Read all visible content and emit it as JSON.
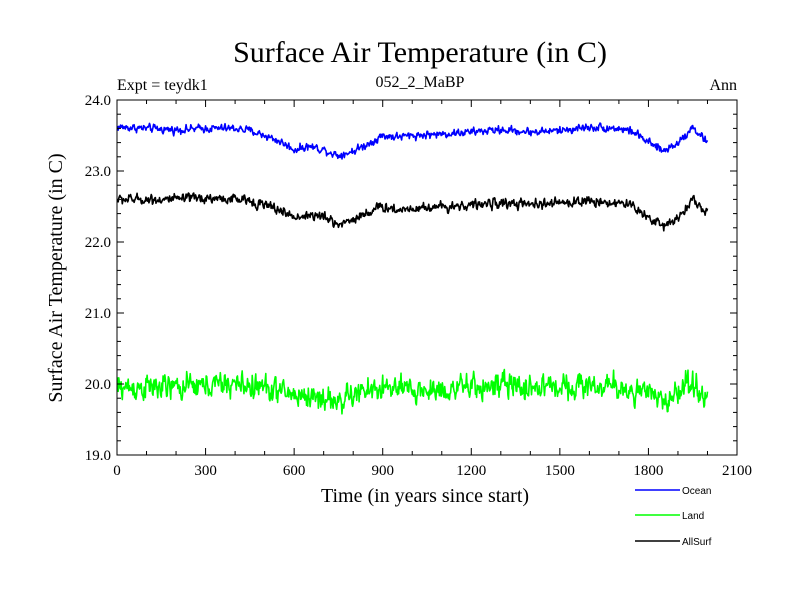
{
  "chart_data": {
    "type": "line",
    "title": "Surface Air Temperature (in C)",
    "subtitle_left": "Expt = teydk1",
    "subtitle_center": "052_2_MaBP",
    "subtitle_right": "Ann",
    "xlabel": "Time (in years since start)",
    "ylabel": "Surface Air Temperature (in C)",
    "xlim": [
      0,
      2100
    ],
    "ylim": [
      19.0,
      24.0
    ],
    "xticks": [
      0,
      300,
      600,
      900,
      1200,
      1500,
      1800,
      2100
    ],
    "xtick_labels": [
      "0",
      "300",
      "600",
      "900",
      "1200",
      "1500",
      "1800",
      "2100"
    ],
    "yticks": [
      19.0,
      20.0,
      21.0,
      22.0,
      23.0,
      24.0
    ],
    "ytick_labels": [
      "19.0",
      "20.0",
      "21.0",
      "22.0",
      "23.0",
      "24.0"
    ],
    "legend_position": "bottom-right outside",
    "series": [
      {
        "name": "Ocean",
        "color": "#0000ff",
        "x_range": [
          0,
          2000
        ],
        "noise_amplitude": 0.12,
        "anchors": [
          [
            0,
            23.62
          ],
          [
            100,
            23.6
          ],
          [
            200,
            23.58
          ],
          [
            300,
            23.6
          ],
          [
            400,
            23.6
          ],
          [
            450,
            23.57
          ],
          [
            500,
            23.5
          ],
          [
            550,
            23.42
          ],
          [
            600,
            23.3
          ],
          [
            650,
            23.35
          ],
          [
            700,
            23.3
          ],
          [
            750,
            23.22
          ],
          [
            800,
            23.28
          ],
          [
            850,
            23.38
          ],
          [
            900,
            23.5
          ],
          [
            950,
            23.48
          ],
          [
            1000,
            23.5
          ],
          [
            1100,
            23.52
          ],
          [
            1200,
            23.55
          ],
          [
            1300,
            23.58
          ],
          [
            1400,
            23.55
          ],
          [
            1500,
            23.57
          ],
          [
            1600,
            23.62
          ],
          [
            1700,
            23.6
          ],
          [
            1750,
            23.55
          ],
          [
            1800,
            23.4
          ],
          [
            1850,
            23.28
          ],
          [
            1900,
            23.4
          ],
          [
            1950,
            23.62
          ],
          [
            2000,
            23.4
          ]
        ]
      },
      {
        "name": "Land",
        "color": "#00ff00",
        "x_range": [
          0,
          2000
        ],
        "noise_amplitude": 0.38,
        "anchors": [
          [
            0,
            19.95
          ],
          [
            100,
            19.95
          ],
          [
            200,
            19.95
          ],
          [
            300,
            19.98
          ],
          [
            400,
            20.0
          ],
          [
            500,
            19.95
          ],
          [
            600,
            19.85
          ],
          [
            700,
            19.8
          ],
          [
            750,
            19.75
          ],
          [
            800,
            19.85
          ],
          [
            900,
            19.95
          ],
          [
            1000,
            19.9
          ],
          [
            1100,
            19.92
          ],
          [
            1200,
            19.95
          ],
          [
            1300,
            19.98
          ],
          [
            1400,
            19.95
          ],
          [
            1500,
            19.98
          ],
          [
            1600,
            19.98
          ],
          [
            1700,
            19.95
          ],
          [
            1800,
            19.85
          ],
          [
            1850,
            19.75
          ],
          [
            1900,
            19.9
          ],
          [
            1950,
            20.05
          ],
          [
            2000,
            19.75
          ]
        ]
      },
      {
        "name": "AllSurf",
        "color": "#000000",
        "x_range": [
          0,
          2000
        ],
        "noise_amplitude": 0.15,
        "anchors": [
          [
            0,
            22.6
          ],
          [
            100,
            22.6
          ],
          [
            200,
            22.6
          ],
          [
            300,
            22.62
          ],
          [
            400,
            22.6
          ],
          [
            450,
            22.58
          ],
          [
            500,
            22.52
          ],
          [
            550,
            22.45
          ],
          [
            600,
            22.35
          ],
          [
            650,
            22.38
          ],
          [
            700,
            22.35
          ],
          [
            750,
            22.25
          ],
          [
            800,
            22.32
          ],
          [
            850,
            22.42
          ],
          [
            900,
            22.5
          ],
          [
            950,
            22.45
          ],
          [
            1000,
            22.48
          ],
          [
            1100,
            22.5
          ],
          [
            1200,
            22.52
          ],
          [
            1300,
            22.55
          ],
          [
            1400,
            22.52
          ],
          [
            1500,
            22.55
          ],
          [
            1600,
            22.58
          ],
          [
            1700,
            22.55
          ],
          [
            1750,
            22.5
          ],
          [
            1800,
            22.35
          ],
          [
            1850,
            22.22
          ],
          [
            1900,
            22.35
          ],
          [
            1950,
            22.6
          ],
          [
            2000,
            22.4
          ]
        ]
      }
    ]
  }
}
